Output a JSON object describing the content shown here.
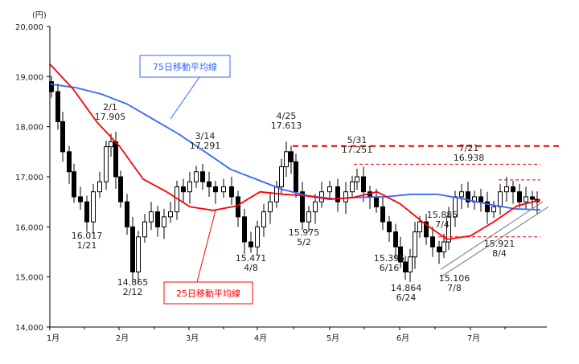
{
  "chart_data": {
    "type": "candlestick-line",
    "yunit": "(円)",
    "ylim": [
      14000,
      20000
    ],
    "yticks": [
      "14,000",
      "15,000",
      "16,000",
      "17,000",
      "18,000",
      "19,000",
      "20,000"
    ],
    "xticks": [
      "1月",
      "2月",
      "3月",
      "4月",
      "5月",
      "6月",
      "7月"
    ],
    "grid": false,
    "series": [
      {
        "name": "75日移動平均線",
        "color": "#3366ff",
        "values": [
          18850,
          18780,
          18650,
          18450,
          18150,
          17850,
          17500,
          17150,
          16950,
          16750,
          16620,
          16560,
          16590,
          16600,
          16650,
          16650,
          16560,
          16450,
          16360,
          16340
        ]
      },
      {
        "name": "25日移動平均線",
        "color": "#ff0000",
        "values": [
          19250,
          18750,
          18100,
          17600,
          16950,
          16700,
          16400,
          16330,
          16420,
          16700,
          16650,
          16620,
          16550,
          16590,
          16700,
          16460,
          16080,
          15750,
          15820,
          16100,
          16420,
          16540
        ]
      }
    ],
    "annotations": [
      {
        "date": "2/1",
        "value": "17.905"
      },
      {
        "date": "1/21",
        "value": "16.017"
      },
      {
        "date": "2/12",
        "value": "14.865"
      },
      {
        "date": "3/14",
        "value": "17.291"
      },
      {
        "date": "4/25",
        "value": "17.613"
      },
      {
        "date": "4/8",
        "value": "15.471"
      },
      {
        "date": "5/2",
        "value": "15.975"
      },
      {
        "date": "5/31",
        "value": "17.251"
      },
      {
        "date": "7/21",
        "value": "16.938"
      },
      {
        "date": "6/16",
        "value": "15.395"
      },
      {
        "date": "6/24",
        "value": "14.864"
      },
      {
        "date": "7/4",
        "value": "15.885"
      },
      {
        "date": "7/8",
        "value": "15.106"
      },
      {
        "date": "8/4",
        "value": "15.921"
      }
    ]
  }
}
